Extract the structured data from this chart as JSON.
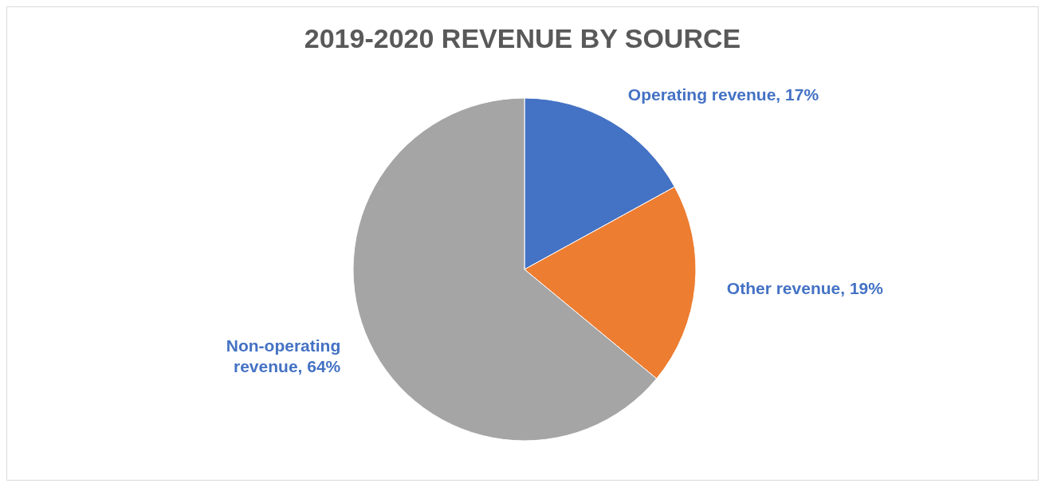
{
  "chart_data": {
    "type": "pie",
    "title": "2019-2020 REVENUE BY SOURCE",
    "categories": [
      "Operating revenue",
      "Other revenue",
      "Non-operating revenue"
    ],
    "values": [
      17,
      19,
      64
    ],
    "colors": [
      "#4472c4",
      "#ed7d31",
      "#a5a5a5"
    ],
    "value_labels": [
      "17%",
      "19%",
      "64%"
    ],
    "legend": false
  }
}
